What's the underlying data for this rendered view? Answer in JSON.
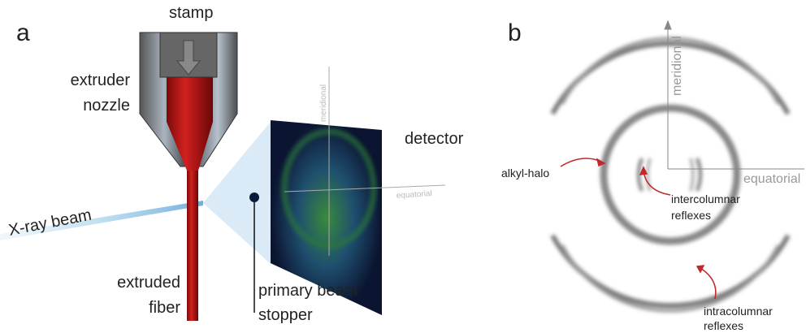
{
  "panel_a": {
    "label": "a",
    "stamp": "stamp",
    "nozzle": [
      "extruder",
      "nozzle"
    ],
    "detector": "detector",
    "meridional": "meridional",
    "equatorial": "equatorial",
    "beam": "X-ray beam",
    "fiber": [
      "extruded",
      "fiber"
    ],
    "stopper": [
      "primary beam",
      "stopper"
    ]
  },
  "panel_b": {
    "label": "b",
    "meridional": "meridional",
    "equatorial": "equatorial",
    "halo": "alkyl-halo",
    "inter": [
      "intercolumnar",
      "reflexes"
    ],
    "intra": [
      "intracolumnar",
      "reflexes"
    ]
  }
}
